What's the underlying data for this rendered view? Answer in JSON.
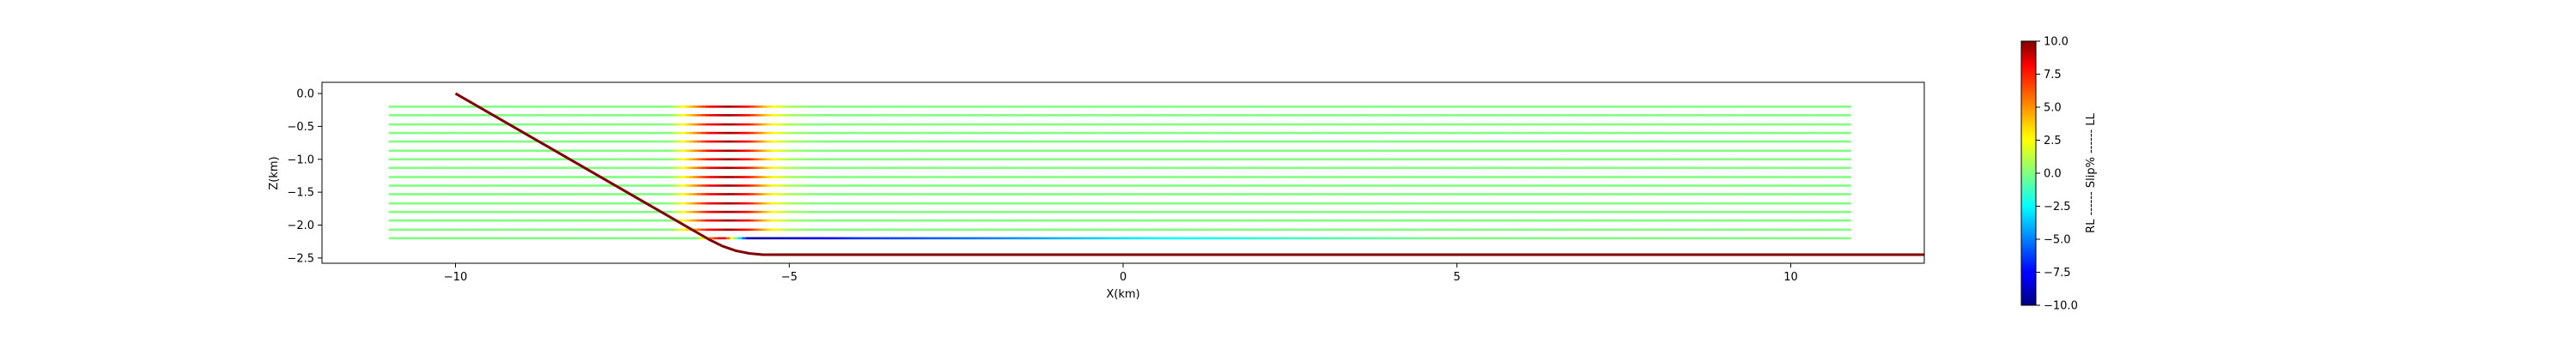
{
  "chart_data": [
    {
      "type": "line",
      "title": "",
      "xlabel": "X(km)",
      "ylabel": "Z(km)",
      "xlim": [
        -12.0,
        12.0
      ],
      "ylim": [
        -2.58,
        0.17
      ],
      "xticks": [
        -10,
        -5,
        0,
        5,
        10
      ],
      "xtick_labels": [
        "−10",
        "−5",
        "0",
        "5",
        "10"
      ],
      "yticks": [
        0.0,
        -0.5,
        -1.0,
        -1.5,
        -2.0,
        -2.5
      ],
      "ytick_labels": [
        "0.0",
        "−0.5",
        "−1.0",
        "−1.5",
        "−2.0",
        "−2.5"
      ],
      "grid": false,
      "fault": {
        "color": "#800000",
        "x": [
          -10.0,
          -6.2,
          -6.0,
          -5.8,
          -5.6,
          -5.4,
          12.0
        ],
        "y": [
          0.0,
          -2.22,
          -2.32,
          -2.39,
          -2.43,
          -2.45,
          -2.45
        ]
      },
      "profiles": {
        "x_start": -11.0,
        "x_end": 10.9,
        "depths": [
          -0.2,
          -0.33,
          -0.47,
          -0.6,
          -0.73,
          -0.87,
          -1.0,
          -1.13,
          -1.27,
          -1.4,
          -1.53,
          -1.67,
          -1.8,
          -1.93,
          -2.07,
          -2.2
        ],
        "slip_profile": {
          "x": [
            -11.0,
            -6.8,
            -6.5,
            -6.2,
            -5.9,
            -5.6,
            -5.3,
            -5.0,
            -4.6,
            10.9
          ],
          "slip": [
            0.0,
            0.0,
            3.5,
            7.5,
            9.5,
            7.0,
            3.0,
            0.8,
            0.0,
            0.0
          ]
        },
        "bottom_profile": {
          "x": [
            -11.0,
            -6.4,
            -6.0,
            -5.6,
            -5.0,
            -4.0,
            -2.0,
            0.0,
            3.0,
            5.0,
            10.9
          ],
          "slip": [
            0.0,
            0.0,
            9.0,
            -9.5,
            -8.5,
            -6.5,
            -5.0,
            -3.0,
            -1.0,
            0.0,
            0.0
          ]
        }
      }
    },
    {
      "type": "colorbar",
      "label": "RL ------ Slip% ------ LL",
      "range": [
        -10.0,
        10.0
      ],
      "ticks": [
        10.0,
        7.5,
        5.0,
        2.5,
        0.0,
        -2.5,
        -5.0,
        -7.5,
        -10.0
      ],
      "tick_labels": [
        "10.0",
        "7.5",
        "5.0",
        "2.5",
        "0.0",
        "−2.5",
        "−5.0",
        "−7.5",
        "−10.0"
      ],
      "colormap": "jet"
    }
  ]
}
